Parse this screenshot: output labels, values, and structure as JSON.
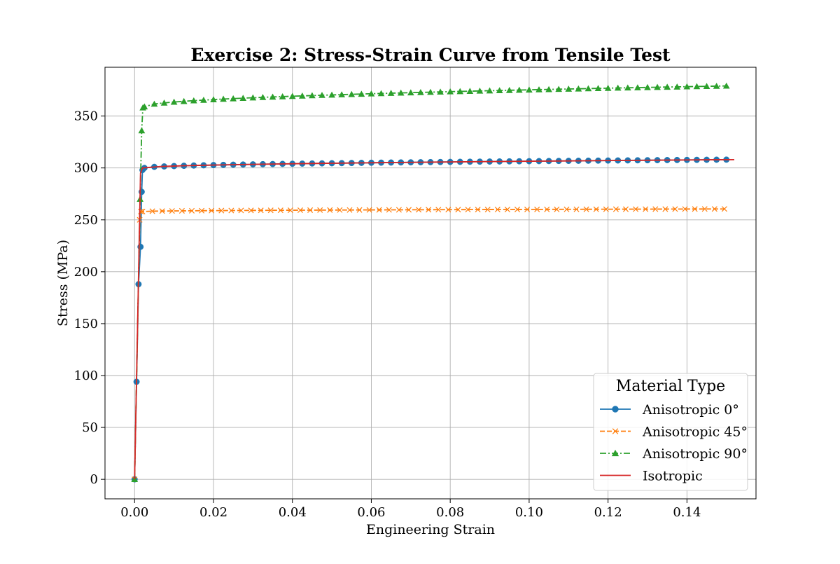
{
  "chart_data": {
    "type": "line",
    "title": "Exercise 2: Stress-Strain Curve from Tensile Test",
    "xlabel": "Engineering Strain",
    "ylabel": "Stress (MPa)",
    "xlim": [
      -0.0075,
      0.1575
    ],
    "ylim": [
      -18.8,
      397
    ],
    "xticks": [
      0.0,
      0.02,
      0.04,
      0.06,
      0.08,
      0.1,
      0.12,
      0.14
    ],
    "xtick_labels": [
      "0.00",
      "0.02",
      "0.04",
      "0.06",
      "0.08",
      "0.10",
      "0.12",
      "0.14"
    ],
    "yticks": [
      0,
      50,
      100,
      150,
      200,
      250,
      300,
      350
    ],
    "ytick_labels": [
      "0",
      "50",
      "100",
      "150",
      "200",
      "250",
      "300",
      "350"
    ],
    "grid": true,
    "legend": {
      "title": "Material Type",
      "placement": "lower right"
    },
    "series": [
      {
        "name": "Anisotropic 0°",
        "color": "#1f77b4",
        "linestyle": "solid",
        "marker": "circle",
        "elastic": [
          [
            0.0,
            0
          ],
          [
            0.0005,
            94
          ],
          [
            0.001,
            188
          ],
          [
            0.0015,
            224
          ],
          [
            0.0018,
            277
          ],
          [
            0.002,
            298
          ]
        ],
        "plastic": {
          "x_start": 0.0025,
          "x_end": 0.15,
          "y_start": 300,
          "y_end": 308,
          "step": 0.0025
        }
      },
      {
        "name": "Anisotropic 45°",
        "color": "#ff7f0e",
        "linestyle": "dashed",
        "marker": "x",
        "elastic": [
          [
            0.0,
            0
          ],
          [
            0.0013,
            250
          ],
          [
            0.0016,
            258
          ]
        ],
        "plastic": {
          "x_start": 0.002,
          "x_end": 0.15,
          "y_start": 258,
          "y_end": 260.5,
          "step": 0.0025
        }
      },
      {
        "name": "Anisotropic 90°",
        "color": "#2ca02c",
        "linestyle": "dashdot",
        "marker": "triangle",
        "elastic": [
          [
            0.0,
            0
          ],
          [
            0.0014,
            270
          ],
          [
            0.0018,
            336
          ],
          [
            0.0021,
            358
          ]
        ],
        "plastic": {
          "x_start": 0.0025,
          "x_end": 0.15,
          "y_start": 359,
          "y_end": 379,
          "step": 0.0025
        }
      },
      {
        "name": "Isotropic",
        "color": "#d62728",
        "linestyle": "solid",
        "marker": "none",
        "elastic": [
          [
            0.0,
            0
          ],
          [
            0.0015,
            295
          ],
          [
            0.002,
            300
          ]
        ],
        "plastic": {
          "x_start": 0.002,
          "x_end": 0.15,
          "y_start": 300,
          "y_end": 308,
          "step": 0.005
        }
      }
    ]
  }
}
